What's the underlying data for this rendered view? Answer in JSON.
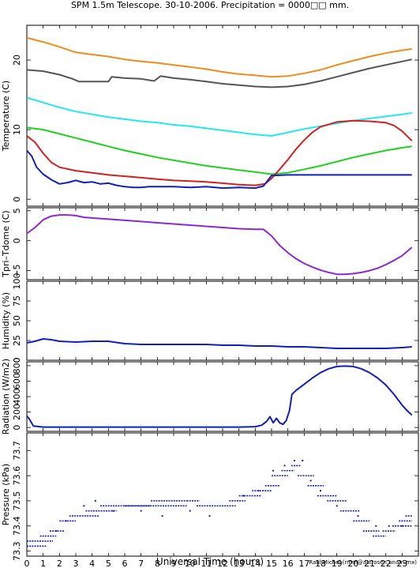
{
  "title": "SPM 1.5m Telescope. 30-10-2006. Precipitation = 0000□□ mm.",
  "credit": "Raul Michel (rmm@astrosen.unam.mx)",
  "xlabel": "Universal Time (hours)",
  "colors": {
    "orange": "#f08c1c",
    "gray": "#555555",
    "cyan": "#22e8f0",
    "red": "#d42020",
    "green": "#22d022",
    "blue": "#1020c0",
    "purple": "#8c28d0"
  },
  "chart_data": [
    {
      "type": "line",
      "ylabel": "Temperature (C)",
      "xlim": [
        0,
        24
      ],
      "ylim": [
        -1,
        25
      ],
      "xticks": [
        0,
        1,
        2,
        3,
        4,
        5,
        6,
        7,
        8,
        9,
        10,
        11,
        12,
        13,
        14,
        15,
        16,
        17,
        18,
        19,
        20,
        21,
        22,
        23
      ],
      "yticks": [
        0,
        10,
        20
      ],
      "series": [
        {
          "color_key": "orange",
          "x": [
            0,
            1,
            2,
            3,
            4,
            5,
            6,
            7,
            8,
            9,
            10,
            11,
            12,
            13,
            14,
            15,
            16,
            17,
            18,
            19,
            20,
            21,
            22,
            23,
            23.6
          ],
          "y": [
            23.2,
            22.6,
            21.9,
            21.1,
            20.8,
            20.5,
            20.1,
            19.8,
            19.6,
            19.3,
            19.0,
            18.7,
            18.3,
            18.0,
            17.8,
            17.6,
            17.7,
            18.1,
            18.6,
            19.3,
            19.9,
            20.5,
            21.0,
            21.4,
            21.6
          ]
        },
        {
          "color_key": "gray",
          "x": [
            0,
            1,
            2,
            2.8,
            3.2,
            4,
            5,
            5.2,
            6,
            7,
            7.8,
            8.2,
            9,
            10,
            11,
            12,
            13,
            14,
            15,
            16,
            17,
            18,
            19,
            20,
            21,
            22,
            23,
            23.6
          ],
          "y": [
            18.6,
            18.4,
            17.9,
            17.3,
            16.9,
            16.9,
            16.9,
            17.6,
            17.4,
            17.3,
            17.0,
            17.7,
            17.4,
            17.2,
            16.9,
            16.6,
            16.4,
            16.2,
            16.1,
            16.2,
            16.5,
            17.0,
            17.6,
            18.2,
            18.8,
            19.3,
            19.8,
            20.1
          ]
        },
        {
          "color_key": "cyan",
          "x": [
            0,
            1,
            2,
            3,
            4,
            5,
            6,
            7,
            8,
            9,
            10,
            11,
            12,
            13,
            14,
            15,
            16,
            17,
            18,
            19,
            20,
            21,
            22,
            23,
            23.6
          ],
          "y": [
            14.6,
            13.9,
            13.2,
            12.6,
            12.2,
            11.8,
            11.5,
            11.2,
            11.0,
            10.7,
            10.5,
            10.2,
            9.9,
            9.6,
            9.3,
            9.1,
            9.6,
            10.1,
            10.5,
            10.9,
            11.3,
            11.6,
            11.9,
            12.2,
            12.4
          ]
        },
        {
          "color_key": "green",
          "x": [
            0,
            1,
            2,
            3,
            4,
            5,
            6,
            7,
            8,
            9,
            10,
            11,
            12,
            13,
            14,
            15,
            16,
            17,
            18,
            19,
            20,
            21,
            22,
            23,
            23.6
          ],
          "y": [
            10.3,
            10.0,
            9.4,
            8.8,
            8.2,
            7.6,
            7.0,
            6.5,
            6.0,
            5.6,
            5.2,
            4.8,
            4.5,
            4.2,
            3.9,
            3.6,
            3.8,
            4.3,
            4.8,
            5.4,
            6.0,
            6.5,
            7.0,
            7.4,
            7.6
          ]
        },
        {
          "color_key": "red",
          "x": [
            0,
            0.5,
            1,
            1.5,
            2,
            3,
            4,
            5,
            6,
            7,
            8,
            9,
            10,
            11,
            12,
            13,
            14,
            14.6,
            15,
            15.5,
            16,
            16.5,
            17,
            17.5,
            18,
            19,
            20,
            21,
            22,
            22.5,
            23,
            23.6
          ],
          "y": [
            9.1,
            8.2,
            6.6,
            5.3,
            4.6,
            4.1,
            3.8,
            3.5,
            3.3,
            3.1,
            2.9,
            2.7,
            2.6,
            2.5,
            2.3,
            2.1,
            2.0,
            2.2,
            3.0,
            4.3,
            5.7,
            7.2,
            8.5,
            9.6,
            10.4,
            11.1,
            11.3,
            11.2,
            11.0,
            10.6,
            9.8,
            8.4
          ]
        },
        {
          "color_key": "blue",
          "x": [
            0,
            0.3,
            0.6,
            1,
            1.5,
            2,
            2.5,
            3,
            3.5,
            4,
            4.5,
            5,
            5.5,
            6,
            6.5,
            7,
            7.5,
            8,
            9,
            10,
            11,
            12,
            13,
            14,
            14.5,
            15,
            16,
            17,
            18,
            19,
            20,
            21,
            22,
            23,
            23.6
          ],
          "y": [
            7.0,
            6.2,
            4.6,
            3.6,
            2.8,
            2.2,
            2.4,
            2.7,
            2.4,
            2.5,
            2.2,
            2.3,
            2.0,
            1.8,
            1.7,
            1.7,
            1.8,
            1.8,
            1.8,
            1.7,
            1.8,
            1.6,
            1.7,
            1.6,
            1.9,
            3.4,
            3.5,
            3.5,
            3.5,
            3.5,
            3.5,
            3.5,
            3.5,
            3.5,
            3.5
          ]
        }
      ]
    },
    {
      "type": "line",
      "ylabel": "Tpri–Tdome (C)",
      "xlim": [
        0,
        24
      ],
      "ylim": [
        -6.5,
        5.5
      ],
      "xticks": [
        0,
        1,
        2,
        3,
        4,
        5,
        6,
        7,
        8,
        9,
        10,
        11,
        12,
        13,
        14,
        15,
        16,
        17,
        18,
        19,
        20,
        21,
        22,
        23
      ],
      "yticks": [
        5,
        0,
        -5
      ],
      "ytick_labels": [
        "5",
        "0",
        "−5"
      ],
      "series": [
        {
          "color_key": "purple",
          "x": [
            0,
            0.5,
            1,
            1.5,
            2,
            2.5,
            3,
            3.5,
            4,
            5,
            6,
            7,
            8,
            9,
            10,
            11,
            12,
            13,
            14,
            14.5,
            15,
            15.5,
            16,
            16.5,
            17,
            17.5,
            18,
            18.5,
            19,
            19.5,
            20,
            20.5,
            21,
            21.5,
            22,
            22.5,
            23,
            23.6
          ],
          "y": [
            1.2,
            2.2,
            3.5,
            4.1,
            4.3,
            4.3,
            4.2,
            3.9,
            3.8,
            3.6,
            3.4,
            3.2,
            3.0,
            2.8,
            2.6,
            2.4,
            2.2,
            2.0,
            1.9,
            1.9,
            0.8,
            -0.8,
            -2.0,
            -3.0,
            -3.8,
            -4.4,
            -4.9,
            -5.3,
            -5.6,
            -5.6,
            -5.5,
            -5.3,
            -5.0,
            -4.6,
            -4.0,
            -3.3,
            -2.5,
            -1.1
          ]
        }
      ]
    },
    {
      "type": "line",
      "ylabel": "Humidity (%)",
      "xlim": [
        0,
        24
      ],
      "ylim": [
        0,
        100
      ],
      "xticks": [
        0,
        1,
        2,
        3,
        4,
        5,
        6,
        7,
        8,
        9,
        10,
        11,
        12,
        13,
        14,
        15,
        16,
        17,
        18,
        19,
        20,
        21,
        22,
        23
      ],
      "yticks": [
        0,
        25,
        50,
        75,
        100
      ],
      "series": [
        {
          "color_key": "blue",
          "x": [
            0,
            0.5,
            1,
            1.5,
            2,
            3,
            4,
            5,
            6,
            7,
            8,
            9,
            10,
            11,
            12,
            13,
            14,
            15,
            16,
            17,
            18,
            19,
            20,
            21,
            22,
            23,
            23.6
          ],
          "y": [
            22,
            24,
            27,
            26,
            24,
            23,
            24,
            24,
            21,
            20,
            20,
            20,
            20,
            20,
            19,
            19,
            18,
            18,
            17,
            17,
            16,
            15,
            15,
            15,
            15,
            16,
            17
          ]
        }
      ]
    },
    {
      "type": "line",
      "ylabel": "Radiation (W/m2)",
      "xlim": [
        0,
        24
      ],
      "ylim": [
        -50,
        850
      ],
      "xticks": [
        0,
        1,
        2,
        3,
        4,
        5,
        6,
        7,
        8,
        9,
        10,
        11,
        12,
        13,
        14,
        15,
        16,
        17,
        18,
        19,
        20,
        21,
        22,
        23
      ],
      "yticks": [
        0,
        200,
        400,
        600,
        800
      ],
      "series": [
        {
          "color_key": "blue",
          "x": [
            0,
            0.15,
            0.4,
            1,
            2,
            3,
            4,
            5,
            6,
            7,
            8,
            9,
            10,
            11,
            12,
            13,
            14,
            14.4,
            14.7,
            14.9,
            15.1,
            15.3,
            15.5,
            15.7,
            15.9,
            16.1,
            16.25,
            16.5,
            17,
            17.5,
            18,
            18.5,
            19,
            19.5,
            20,
            20.5,
            21,
            21.5,
            22,
            22.5,
            23,
            23.3,
            23.6
          ],
          "y": [
            150,
            110,
            20,
            5,
            5,
            5,
            5,
            5,
            5,
            5,
            5,
            5,
            5,
            5,
            5,
            5,
            10,
            30,
            80,
            140,
            60,
            120,
            60,
            40,
            90,
            220,
            430,
            480,
            560,
            640,
            710,
            760,
            790,
            795,
            790,
            760,
            710,
            640,
            550,
            430,
            290,
            220,
            160
          ]
        }
      ]
    },
    {
      "type": "scatter",
      "ylabel": "Pressure (kPa)",
      "xlim": [
        0,
        24
      ],
      "ylim": [
        73.28,
        73.77
      ],
      "xticks": [
        0,
        1,
        2,
        3,
        4,
        5,
        6,
        7,
        8,
        9,
        10,
        11,
        12,
        13,
        14,
        15,
        16,
        17,
        18,
        19,
        20,
        21,
        22,
        23
      ],
      "xtick_labels": [
        "0",
        "1",
        "2",
        "3",
        "4",
        "5",
        "6",
        "7",
        "8",
        "9",
        "10",
        "11",
        "12",
        "13",
        "14",
        "15",
        "16",
        "17",
        "18",
        "19",
        "20",
        "21",
        "22",
        "23"
      ],
      "yticks": [
        73.3,
        73.4,
        73.5,
        73.6,
        73.7
      ],
      "series": [
        {
          "color_key": "blue",
          "step_kpa": 0.02,
          "points": [
            [
              0,
              1.2,
              73.32
            ],
            [
              0,
              1.6,
              73.34
            ],
            [
              0.8,
              1.8,
              73.36
            ],
            [
              1.4,
              2.3,
              73.38
            ],
            [
              2.0,
              3.0,
              73.42
            ],
            [
              2.6,
              4.4,
              73.44
            ],
            [
              3.6,
              5.5,
              73.46
            ],
            [
              4.5,
              7.6,
              73.48
            ],
            [
              6.0,
              9.8,
              73.48
            ],
            [
              7.6,
              9.8,
              73.5
            ],
            [
              9.8,
              10.6,
              73.5
            ],
            [
              10.4,
              12.8,
              73.48
            ],
            [
              12.4,
              13.4,
              73.5
            ],
            [
              13.0,
              14.4,
              73.52
            ],
            [
              13.8,
              15.0,
              73.54
            ],
            [
              14.6,
              15.5,
              73.56
            ],
            [
              15.0,
              16.0,
              73.6
            ],
            [
              15.6,
              16.4,
              73.62
            ],
            [
              16.2,
              16.8,
              73.64
            ],
            [
              16.6,
              17.6,
              73.6
            ],
            [
              17.2,
              18.2,
              73.56
            ],
            [
              17.8,
              19.0,
              73.52
            ],
            [
              18.4,
              19.6,
              73.5
            ],
            [
              19.2,
              20.4,
              73.46
            ],
            [
              20.0,
              21.0,
              73.42
            ],
            [
              20.6,
              21.6,
              73.38
            ],
            [
              21.2,
              22.0,
              73.36
            ],
            [
              21.8,
              22.6,
              73.38
            ],
            [
              22.4,
              23.6,
              73.4
            ],
            [
              22.8,
              23.6,
              73.42
            ],
            [
              23.2,
              23.6,
              73.44
            ]
          ],
          "scattered": [
            [
              3.5,
              73.48
            ],
            [
              4.2,
              73.5
            ],
            [
              7.0,
              73.46
            ],
            [
              8.3,
              73.44
            ],
            [
              10.0,
              73.46
            ],
            [
              11.2,
              73.44
            ],
            [
              13.3,
              73.52
            ],
            [
              14.2,
              73.54
            ],
            [
              15.1,
              73.62
            ],
            [
              15.8,
              73.64
            ],
            [
              16.4,
              73.66
            ],
            [
              16.9,
              73.66
            ],
            [
              17.4,
              73.58
            ],
            [
              18.0,
              73.54
            ],
            [
              19.0,
              73.48
            ],
            [
              20.3,
              73.44
            ],
            [
              21.4,
              73.4
            ],
            [
              22.2,
              73.4
            ],
            [
              23.0,
              73.4
            ],
            [
              1.8,
              73.38
            ],
            [
              2.4,
              73.42
            ],
            [
              5.3,
              73.46
            ]
          ]
        }
      ]
    }
  ]
}
